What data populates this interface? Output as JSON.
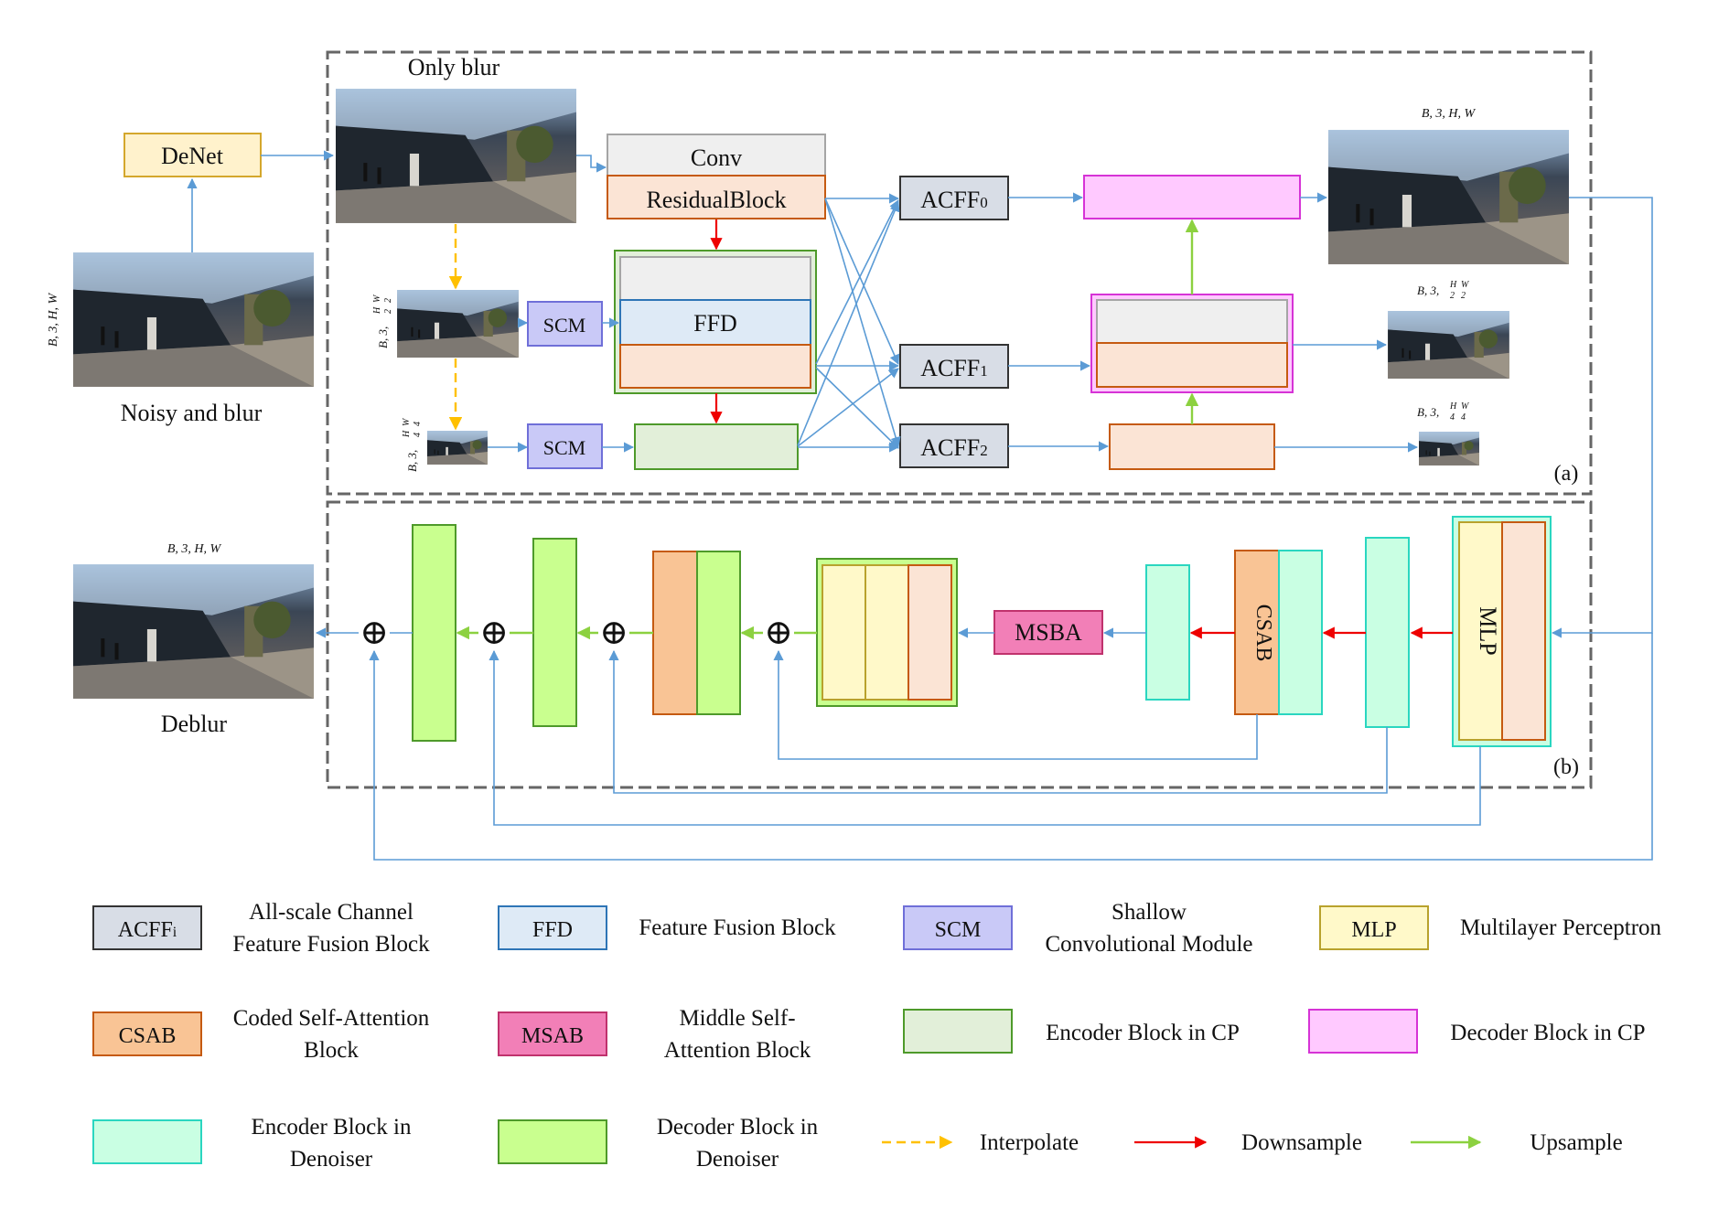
{
  "labels": {
    "only_blur": "Only blur",
    "noisy_and_blur": "Noisy and blur",
    "deblur": "Deblur",
    "panel_a": "(a)",
    "panel_b": "(b)"
  },
  "shapes": {
    "full": "B, 3, H, W",
    "half_prefix": "B, 3,",
    "half_h": "H",
    "half_w": "W",
    "half_den": "2",
    "quarter_den": "4"
  },
  "blocks": {
    "denet": "DeNet",
    "conv": "Conv",
    "residual": "ResidualBlock",
    "ffd": "FFD",
    "scm": "SCM",
    "acff_base": "ACFF",
    "acff_sub": [
      "0",
      "1",
      "2"
    ],
    "msba": "MSBA",
    "csab": "CSAB",
    "mlp": "MLP",
    "plus": "⊕"
  },
  "legend": [
    {
      "box": "ACFF",
      "box_sub": "i",
      "text": [
        "All-scale Channel",
        "Feature Fusion Block"
      ]
    },
    {
      "box": "FFD",
      "text": [
        "Feature Fusion Block"
      ]
    },
    {
      "box": "SCM",
      "text": [
        "Shallow",
        "Convolutional Module"
      ]
    },
    {
      "box": "MLP",
      "text": [
        "Multilayer Perceptron"
      ]
    },
    {
      "box": "CSAB",
      "text": [
        "Coded Self-Attention",
        "Block"
      ]
    },
    {
      "box": "MSAB",
      "text": [
        "Middle Self-",
        "Attention Block"
      ]
    },
    {
      "box": "",
      "text": [
        "Encoder Block in CP"
      ]
    },
    {
      "box": "",
      "text": [
        "Decoder Block in CP"
      ]
    },
    {
      "box": "",
      "text": [
        "Encoder Block in",
        "Denoiser"
      ]
    },
    {
      "box": "",
      "text": [
        "Decoder Block in",
        "Denoiser"
      ]
    },
    {
      "box": "",
      "text": [
        "Interpolate"
      ]
    },
    {
      "box": "",
      "text": [
        "Downsample"
      ]
    },
    {
      "box": "",
      "text": [
        "Upsample"
      ]
    }
  ],
  "colors": {
    "acff": "#d8dde6",
    "ffd": "#deeaf6",
    "scm": "#c9c9f7",
    "mlp": "#fff9c9",
    "csab": "#f9c495",
    "msab": "#f27fb7",
    "enc_cp": "#e2efd9",
    "dec_cp": "#ffc9ff",
    "enc_dn": "#c9ffe3",
    "dec_dn": "#c9ff8f",
    "residual": "#fbe4d5",
    "denet": "#fff2cc",
    "conv": "#efefef",
    "arrow_blue": "#5b9bd5",
    "arrow_red": "#ee0000",
    "arrow_green": "#8cd140",
    "arrow_orange": "#ffc000"
  }
}
